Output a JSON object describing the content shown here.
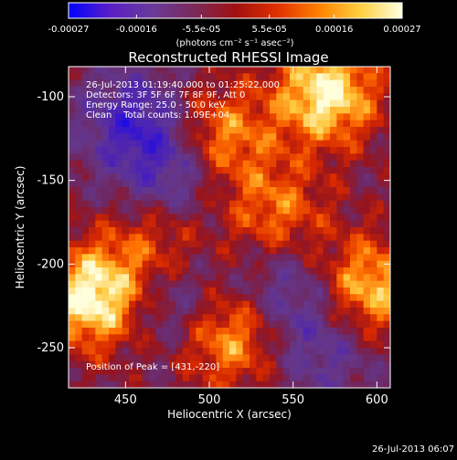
{
  "chart_data": {
    "type": "heatmap",
    "title": "Reconstructed RHESSI Image",
    "xlabel": "Heliocentric X (arcsec)",
    "ylabel": "Heliocentric Y (arcsec)",
    "xlim": [
      416,
      608
    ],
    "ylim": [
      -274,
      -82
    ],
    "x_ticks": [
      450,
      500,
      550,
      600
    ],
    "y_ticks": [
      -250,
      -200,
      -150,
      -100
    ],
    "colorbar": {
      "ticks": [
        "-0.00027",
        "-0.00016",
        "-5.5e-05",
        "5.5e-05",
        "0.00016",
        "0.00027"
      ],
      "tick_values": [
        -0.00027,
        -0.00016,
        -5.5e-05,
        5.5e-05,
        0.00016,
        0.00027
      ],
      "range": [
        -0.00027,
        0.00027
      ],
      "label": "(photons cm⁻² s⁻¹ asec⁻²)",
      "colors": [
        "#0000ff",
        "#5a1fc8",
        "#6a3a9a",
        "#7a2a5a",
        "#a01010",
        "#e03000",
        "#ff8000",
        "#ffd040",
        "#ffffe0"
      ]
    },
    "annotations": [
      "26-Jul-2013 01:19:40.000 to 01:25:22.000",
      "Detectors: 3F 5F 6F 7F 8F 9F, Att 0",
      "Energy Range: 25.0 - 50.0 keV",
      "Clean    Total counts: 1.09E+04"
    ],
    "peak_label": "Position of Peak = [431,-220]",
    "peak": [
      431,
      -220
    ],
    "sources": [
      {
        "x": 431,
        "y": -220,
        "amp": 1.0
      },
      {
        "x": 570,
        "y": -98,
        "amp": 0.95
      },
      {
        "x": 595,
        "y": -215,
        "amp": 0.8
      },
      {
        "x": 512,
        "y": -242,
        "amp": 0.75
      },
      {
        "x": 505,
        "y": -125,
        "amp": 0.7
      },
      {
        "x": 540,
        "y": -170,
        "amp": 0.55
      },
      {
        "x": 470,
        "y": -190,
        "amp": 0.5
      },
      {
        "x": 455,
        "y": -115,
        "amp": -0.6
      },
      {
        "x": 480,
        "y": -145,
        "amp": -0.55
      },
      {
        "x": 480,
        "y": -220,
        "amp": -0.5
      },
      {
        "x": 545,
        "y": -215,
        "amp": -0.45
      },
      {
        "x": 570,
        "y": -250,
        "amp": -0.4
      }
    ]
  },
  "footer_timestamp": "26-Jul-2013 06:07"
}
